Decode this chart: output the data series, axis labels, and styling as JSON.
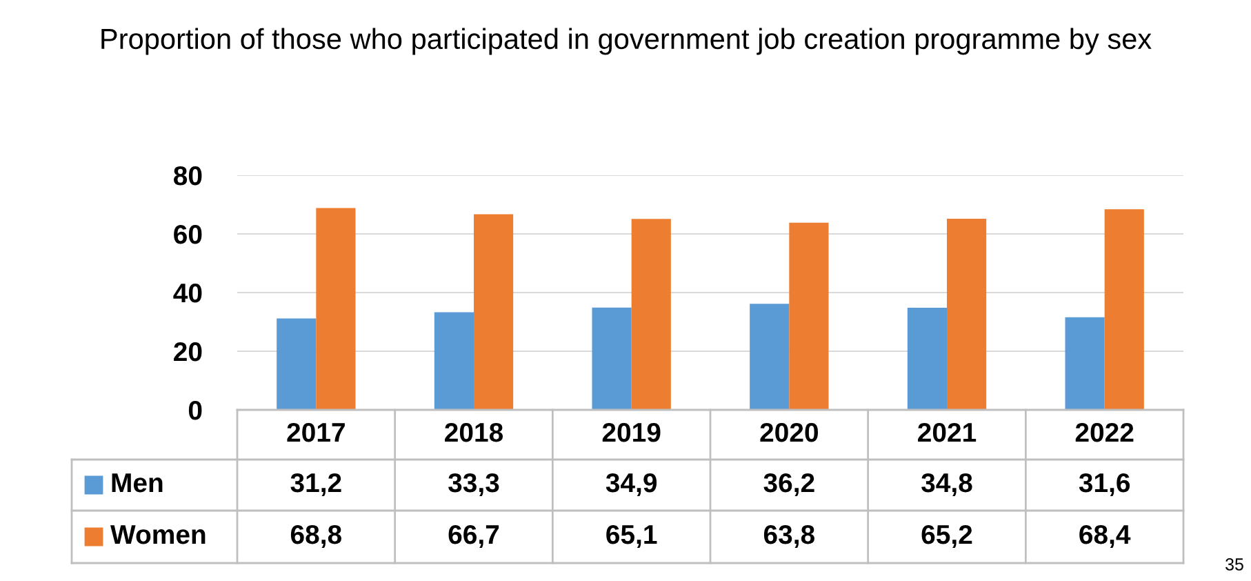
{
  "chart_data": {
    "type": "bar",
    "title": "Proportion of those who participated in government job creation programme by sex",
    "categories": [
      "2017",
      "2018",
      "2019",
      "2020",
      "2021",
      "2022"
    ],
    "series": [
      {
        "name": "Men",
        "color": "#5b9bd5",
        "values": [
          31.2,
          33.3,
          34.9,
          36.2,
          34.8,
          31.6
        ],
        "value_labels": [
          "31,2",
          "33,3",
          "34,9",
          "36,2",
          "34,8",
          "31,6"
        ]
      },
      {
        "name": "Women",
        "color": "#ed7d31",
        "values": [
          68.8,
          66.7,
          65.1,
          63.8,
          65.2,
          68.4
        ],
        "value_labels": [
          "68,8",
          "66,7",
          "65,1",
          "63,8",
          "65,2",
          "68,4"
        ]
      }
    ],
    "ylim": [
      0,
      80
    ],
    "yticks": [
      0,
      20,
      40,
      60,
      80
    ],
    "grid": "y",
    "legend": "bottom",
    "annotations": [
      "35"
    ]
  }
}
